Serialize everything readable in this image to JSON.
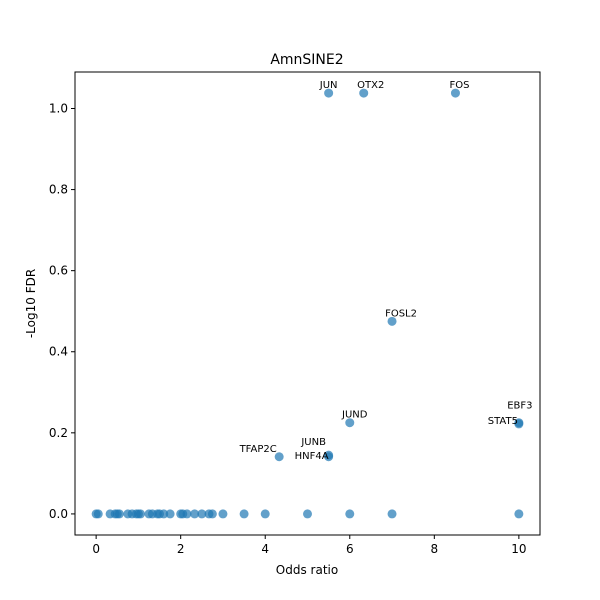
{
  "chart_data": {
    "type": "scatter",
    "title": "AmnSINE2",
    "xlabel": "Odds ratio",
    "ylabel": "-Log10 FDR",
    "xlim": [
      -0.5,
      10.5
    ],
    "ylim": [
      -0.052,
      1.09
    ],
    "xticks": [
      0,
      2,
      4,
      6,
      8,
      10
    ],
    "xtick_labels": [
      "0",
      "2",
      "4",
      "6",
      "8",
      "10"
    ],
    "yticks": [
      0.0,
      0.2,
      0.4,
      0.6,
      0.8,
      1.0
    ],
    "ytick_labels": [
      "0.0",
      "0.2",
      "0.4",
      "0.6",
      "0.8",
      "1.0"
    ],
    "grid": false,
    "point_color": "#1f77b4",
    "point_alpha": 0.7,
    "points": [
      {
        "x": 0.0,
        "y": 0.0
      },
      {
        "x": 0.05,
        "y": 0.0
      },
      {
        "x": 0.33,
        "y": 0.0
      },
      {
        "x": 0.45,
        "y": 0.0
      },
      {
        "x": 0.5,
        "y": 0.0
      },
      {
        "x": 0.55,
        "y": 0.0
      },
      {
        "x": 0.75,
        "y": 0.0
      },
      {
        "x": 0.85,
        "y": 0.0
      },
      {
        "x": 0.95,
        "y": 0.0
      },
      {
        "x": 1.0,
        "y": 0.0
      },
      {
        "x": 1.05,
        "y": 0.0
      },
      {
        "x": 1.25,
        "y": 0.0
      },
      {
        "x": 1.33,
        "y": 0.0
      },
      {
        "x": 1.45,
        "y": 0.0
      },
      {
        "x": 1.5,
        "y": 0.0
      },
      {
        "x": 1.6,
        "y": 0.0
      },
      {
        "x": 1.75,
        "y": 0.0
      },
      {
        "x": 2.0,
        "y": 0.0
      },
      {
        "x": 2.05,
        "y": 0.0
      },
      {
        "x": 2.15,
        "y": 0.0
      },
      {
        "x": 2.33,
        "y": 0.0
      },
      {
        "x": 2.5,
        "y": 0.0
      },
      {
        "x": 2.67,
        "y": 0.0
      },
      {
        "x": 2.75,
        "y": 0.0
      },
      {
        "x": 3.0,
        "y": 0.0
      },
      {
        "x": 3.5,
        "y": 0.0
      },
      {
        "x": 4.0,
        "y": 0.0
      },
      {
        "x": 5.0,
        "y": 0.0
      },
      {
        "x": 6.0,
        "y": 0.0
      },
      {
        "x": 7.0,
        "y": 0.0
      },
      {
        "x": 10.0,
        "y": 0.0
      },
      {
        "x": 4.33,
        "y": 0.141,
        "label": "TFAP2C"
      },
      {
        "x": 5.5,
        "y": 0.141,
        "label": "HNF4A"
      },
      {
        "x": 5.5,
        "y": 0.145,
        "label": "JUNB"
      },
      {
        "x": 6.0,
        "y": 0.225,
        "label": "JUND"
      },
      {
        "x": 10.0,
        "y": 0.225,
        "label": "EBF3"
      },
      {
        "x": 10.0,
        "y": 0.222,
        "label": "STAT5"
      },
      {
        "x": 7.0,
        "y": 0.475,
        "label": "FOSL2"
      },
      {
        "x": 5.5,
        "y": 1.038,
        "label": "JUN"
      },
      {
        "x": 6.33,
        "y": 1.038,
        "label": "OTX2"
      },
      {
        "x": 8.5,
        "y": 1.038,
        "label": "FOS"
      }
    ]
  }
}
